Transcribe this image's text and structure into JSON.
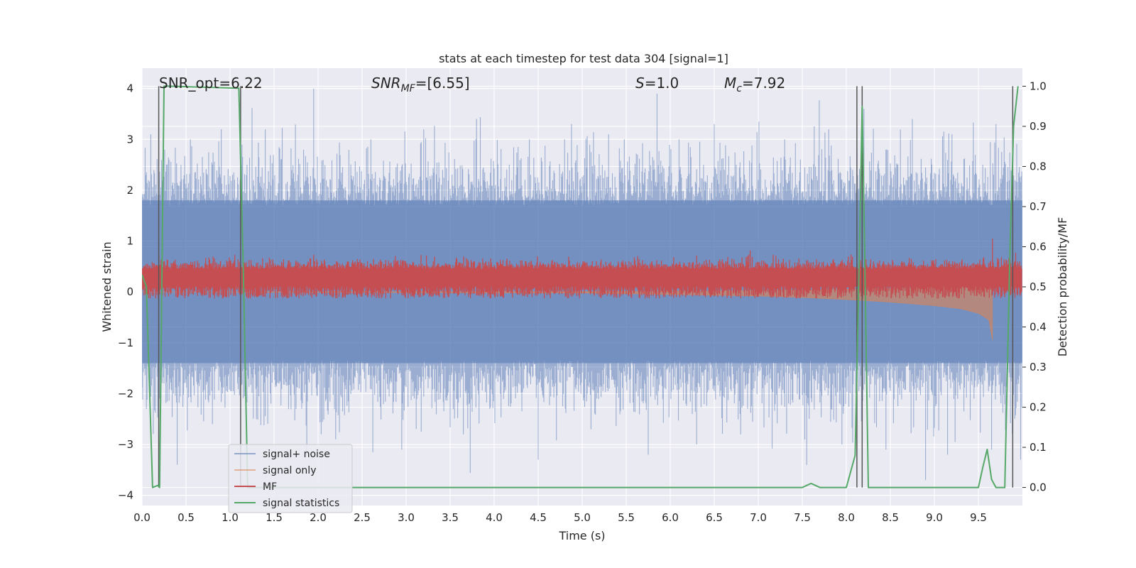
{
  "chart_data": {
    "type": "line",
    "title": "stats at each timestep for test data 304 [signal=1]",
    "xlabel": "Time (s)",
    "ylabel_left": "Whitened strain",
    "ylabel_right": "Detection probability/MF",
    "xlim": [
      0,
      10
    ],
    "ylim_left": [
      -4.2,
      4.4
    ],
    "ylim_right": [
      -0.045,
      1.045
    ],
    "x_ticks": [
      "0.0",
      "0.5",
      "1.0",
      "1.5",
      "2.0",
      "2.5",
      "3.0",
      "3.5",
      "4.0",
      "4.5",
      "5.0",
      "5.5",
      "6.0",
      "6.5",
      "7.0",
      "7.5",
      "8.0",
      "8.5",
      "9.0",
      "9.5"
    ],
    "y_left_ticks": [
      "4",
      "3",
      "2",
      "1",
      "0",
      "−1",
      "−2",
      "−3",
      "−4"
    ],
    "y_right_ticks": [
      "1.0",
      "0.9",
      "0.8",
      "0.7",
      "0.6",
      "0.5",
      "0.4",
      "0.3",
      "0.2",
      "0.1",
      "0.0"
    ],
    "grid": true,
    "legend_position": "lower-left",
    "annotations": {
      "snr_opt": "SNR_opt=6.22",
      "snr_mf_sym": "SNR",
      "snr_mf_sub": "MF",
      "snr_mf_val": "=[6.55]",
      "s_sym": "S",
      "s_val": "=1.0",
      "mc_sym": "M",
      "mc_sub": "c",
      "mc_val": "=7.92"
    },
    "series": [
      {
        "name": "signal+ noise",
        "color": "#4c72b0",
        "axis": "left",
        "description_level": "noise band",
        "band_core": [
          -1.4,
          1.8
        ],
        "peaks_max": [
          [
            0.1,
            3.1
          ],
          [
            0.55,
            3.0
          ],
          [
            0.9,
            3.2
          ],
          [
            1.25,
            3.0
          ],
          [
            1.95,
            4.0
          ],
          [
            2.6,
            3.0
          ],
          [
            3.2,
            3.2
          ],
          [
            3.8,
            3.4
          ],
          [
            4.4,
            3.0
          ],
          [
            4.8,
            3.0
          ],
          [
            5.3,
            3.1
          ],
          [
            5.85,
            3.9
          ],
          [
            6.1,
            3.0
          ],
          [
            6.5,
            3.3
          ],
          [
            7.3,
            3.0
          ],
          [
            7.8,
            3.2
          ],
          [
            8.2,
            3.6
          ],
          [
            8.75,
            3.4
          ],
          [
            9.2,
            3.1
          ],
          [
            9.7,
            3.3
          ]
        ],
        "peaks_min": [
          [
            0.05,
            -2.3
          ],
          [
            0.4,
            -3.4
          ],
          [
            0.8,
            -2.6
          ],
          [
            1.3,
            -2.5
          ],
          [
            1.75,
            -2.3
          ],
          [
            2.2,
            -2.9
          ],
          [
            2.95,
            -3.1
          ],
          [
            3.65,
            -2.8
          ],
          [
            4.5,
            -3.3
          ],
          [
            5.1,
            -2.7
          ],
          [
            5.75,
            -3.2
          ],
          [
            6.3,
            -3.0
          ],
          [
            6.8,
            -2.8
          ],
          [
            7.55,
            -3.4
          ],
          [
            7.95,
            -3.0
          ],
          [
            8.45,
            -3.1
          ],
          [
            8.9,
            -3.7
          ],
          [
            9.15,
            -3.2
          ],
          [
            9.65,
            -3.1
          ],
          [
            9.98,
            -3.3
          ]
        ]
      },
      {
        "name": "signal only",
        "color": "#dd8452",
        "axis": "left",
        "chirp_x": [
          5.0,
          6.0,
          7.0,
          7.5,
          8.0,
          8.5,
          9.0,
          9.3,
          9.5,
          9.62,
          9.66
        ],
        "chirp_amp": [
          0.02,
          0.05,
          0.08,
          0.11,
          0.15,
          0.2,
          0.27,
          0.33,
          0.42,
          0.55,
          0.95
        ]
      },
      {
        "name": "MF",
        "color": "#c44e52",
        "axis": "right",
        "band": [
          0.48,
          0.545
        ],
        "spikes": [
          [
            1.95,
            0.58
          ],
          [
            9.66,
            0.62
          ]
        ]
      },
      {
        "name": "signal statistics",
        "color": "#55a868",
        "axis": "right",
        "x": [
          0,
          0.05,
          0.12,
          0.18,
          0.2,
          0.25,
          0.3,
          1.1,
          1.15,
          1.2,
          1.3,
          7.5,
          7.55,
          7.6,
          7.65,
          7.7,
          8.0,
          8.1,
          8.15,
          8.18,
          8.2,
          8.25,
          9.5,
          9.55,
          9.6,
          9.65,
          9.7,
          9.8,
          9.82,
          9.86,
          9.9,
          9.95
        ],
        "y": [
          0.53,
          0.5,
          0.0,
          0.005,
          0.0,
          1.0,
          1.0,
          0.995,
          0.55,
          0.0,
          0.0,
          0.0,
          0.005,
          0.01,
          0.005,
          0.0,
          0.0,
          0.08,
          0.6,
          0.95,
          0.7,
          0.0,
          0.0,
          0.05,
          0.095,
          0.02,
          0.0,
          0.0,
          0.2,
          0.6,
          0.9,
          1.0
        ]
      }
    ],
    "vlines": [
      0.19,
      1.12,
      8.12,
      8.18,
      9.89
    ]
  }
}
